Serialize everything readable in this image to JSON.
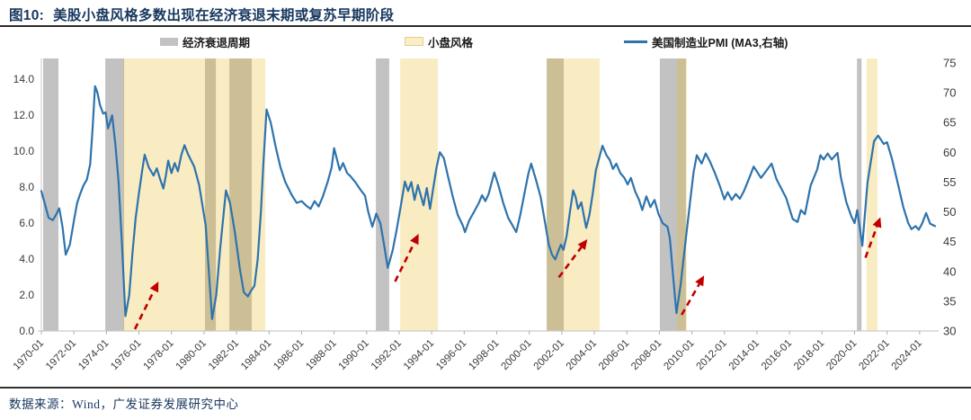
{
  "title": {
    "prefix": "图10:",
    "text": "美股小盘风格多数出现在经济衰退末期或复苏早期阶段"
  },
  "legend": [
    {
      "label": "经济衰退周期",
      "swatch": "gray-band"
    },
    {
      "label": "小盘风格",
      "swatch": "yellow-band"
    },
    {
      "label": "美国制造业PMI (MA3,右轴)",
      "swatch": "blue-line"
    }
  ],
  "source": "数据来源：Wind，广发证券发展研究中心",
  "colors": {
    "navy": "#17375e",
    "line_blue": "#2e73ac",
    "recession_gray": "#c2c2c2",
    "smallcap_yellow": "rgba(233,186,34,0.27)",
    "arrow_red": "#c00000",
    "axis_text": "#3a3a3a",
    "spine": "#c9c9c9"
  },
  "chart_data": {
    "type": "line",
    "title": "美股小盘风格多数出现在经济衰退末期或复苏早期阶段",
    "x_axis": {
      "range": [
        1970.0,
        2024.95
      ],
      "tick_years": [
        1970,
        1972,
        1974,
        1976,
        1978,
        1980,
        1982,
        1984,
        1986,
        1988,
        1990,
        1992,
        1994,
        1996,
        1998,
        2000,
        2002,
        2004,
        2006,
        2008,
        2010,
        2012,
        2014,
        2016,
        2018,
        2020,
        2022,
        2024
      ],
      "tick_labels": [
        "1970-01",
        "1972-01",
        "1974-01",
        "1976-01",
        "1978-01",
        "1980-01",
        "1982-01",
        "1984-01",
        "1986-01",
        "1988-01",
        "1990-01",
        "1992-01",
        "1994-01",
        "1996-01",
        "1998-01",
        "2000-01",
        "2002-01",
        "2004-01",
        "2006-01",
        "2008-01",
        "2010-01",
        "2012-01",
        "2014-01",
        "2016-01",
        "2018-01",
        "2020-01",
        "2022-01",
        "2024-01"
      ]
    },
    "left_axis": {
      "min": 0,
      "max": 14,
      "ticks": [
        0,
        2,
        4,
        6,
        8,
        10,
        12,
        14
      ],
      "tick_labels": [
        "0.0",
        "2.0",
        "4.0",
        "6.0",
        "8.0",
        "10.0",
        "12.0",
        "14.0"
      ]
    },
    "right_axis": {
      "min": 30,
      "max": 75,
      "ticks": [
        30,
        35,
        40,
        45,
        50,
        55,
        60,
        65,
        70,
        75
      ],
      "tick_labels": [
        "30",
        "35",
        "40",
        "45",
        "50",
        "55",
        "60",
        "65",
        "70",
        "75"
      ]
    },
    "recession_bands": [
      [
        1970.11,
        1971.05
      ],
      [
        1973.93,
        1975.09
      ],
      [
        1980.06,
        1980.73
      ],
      [
        1981.56,
        1982.94
      ],
      [
        1990.57,
        1991.39
      ],
      [
        2001.07,
        2002.12
      ],
      [
        2008.03,
        2009.63
      ],
      [
        2020.15,
        2020.43
      ]
    ],
    "smallcap_bands": [
      [
        1975.03,
        1983.77
      ],
      [
        1992.06,
        1994.38
      ],
      [
        2001.07,
        2004.33
      ],
      [
        2009.08,
        2009.69
      ],
      [
        2020.74,
        2021.41
      ]
    ],
    "arrows": [
      {
        "from": [
          1975.75,
          30.3
        ],
        "to": [
          1977.2,
          38.3
        ]
      },
      {
        "from": [
          1991.75,
          38.3
        ],
        "to": [
          1993.2,
          46.3
        ]
      },
      {
        "from": [
          2001.82,
          39.0
        ],
        "to": [
          2003.57,
          45.4
        ]
      },
      {
        "from": [
          2009.37,
          32.7
        ],
        "to": [
          2010.75,
          39.3
        ]
      },
      {
        "from": [
          2020.67,
          42.3
        ],
        "to": [
          2021.59,
          49.1
        ]
      }
    ],
    "series": [
      {
        "name": "美国制造业PMI (MA3,右轴)",
        "axis": "right",
        "color": "#2e73ac",
        "points": [
          [
            1970.0,
            53.5
          ],
          [
            1970.2,
            51.5
          ],
          [
            1970.45,
            49.0
          ],
          [
            1970.7,
            48.6
          ],
          [
            1970.9,
            49.5
          ],
          [
            1971.1,
            50.6
          ],
          [
            1971.3,
            47.5
          ],
          [
            1971.5,
            42.8
          ],
          [
            1971.75,
            44.5
          ],
          [
            1972.0,
            48.5
          ],
          [
            1972.2,
            51.5
          ],
          [
            1972.4,
            53.1
          ],
          [
            1972.6,
            54.5
          ],
          [
            1972.8,
            55.4
          ],
          [
            1973.0,
            58.0
          ],
          [
            1973.15,
            64.0
          ],
          [
            1973.3,
            71.1
          ],
          [
            1973.45,
            70.0
          ],
          [
            1973.6,
            68.0
          ],
          [
            1973.8,
            66.5
          ],
          [
            1973.95,
            66.7
          ],
          [
            1974.1,
            64.0
          ],
          [
            1974.35,
            66.2
          ],
          [
            1974.55,
            61.4
          ],
          [
            1974.75,
            55.0
          ],
          [
            1974.95,
            45.0
          ],
          [
            1975.17,
            32.5
          ],
          [
            1975.4,
            36.0
          ],
          [
            1975.6,
            43.0
          ],
          [
            1975.8,
            49.0
          ],
          [
            1976.0,
            53.1
          ],
          [
            1976.2,
            57.0
          ],
          [
            1976.35,
            59.6
          ],
          [
            1976.6,
            57.5
          ],
          [
            1976.9,
            56.1
          ],
          [
            1977.1,
            57.3
          ],
          [
            1977.3,
            55.5
          ],
          [
            1977.5,
            53.9
          ],
          [
            1977.65,
            56.0
          ],
          [
            1977.8,
            58.6
          ],
          [
            1978.0,
            56.5
          ],
          [
            1978.2,
            58.2
          ],
          [
            1978.4,
            56.8
          ],
          [
            1978.6,
            59.5
          ],
          [
            1978.8,
            61.2
          ],
          [
            1979.0,
            59.8
          ],
          [
            1979.4,
            57.6
          ],
          [
            1979.7,
            54.5
          ],
          [
            1980.1,
            47.8
          ],
          [
            1980.3,
            40.0
          ],
          [
            1980.5,
            32.0
          ],
          [
            1980.75,
            36.0
          ],
          [
            1981.0,
            44.0
          ],
          [
            1981.35,
            53.6
          ],
          [
            1981.6,
            51.5
          ],
          [
            1981.9,
            46.5
          ],
          [
            1982.2,
            40.5
          ],
          [
            1982.45,
            36.5
          ],
          [
            1982.7,
            35.8
          ],
          [
            1982.9,
            36.8
          ],
          [
            1983.1,
            37.6
          ],
          [
            1983.3,
            42.0
          ],
          [
            1983.5,
            50.0
          ],
          [
            1983.65,
            58.0
          ],
          [
            1983.85,
            67.2
          ],
          [
            1984.1,
            65.0
          ],
          [
            1984.4,
            61.0
          ],
          [
            1984.7,
            57.5
          ],
          [
            1985.0,
            55.0
          ],
          [
            1985.4,
            52.8
          ],
          [
            1985.7,
            51.5
          ],
          [
            1986.0,
            51.8
          ],
          [
            1986.3,
            51.0
          ],
          [
            1986.55,
            50.5
          ],
          [
            1986.8,
            51.8
          ],
          [
            1987.05,
            50.9
          ],
          [
            1987.3,
            52.5
          ],
          [
            1987.6,
            55.0
          ],
          [
            1987.85,
            57.5
          ],
          [
            1988.0,
            60.7
          ],
          [
            1988.35,
            57.0
          ],
          [
            1988.55,
            58.2
          ],
          [
            1988.8,
            56.5
          ],
          [
            1989.0,
            56.0
          ],
          [
            1989.3,
            55.0
          ],
          [
            1989.6,
            53.8
          ],
          [
            1989.9,
            52.7
          ],
          [
            1990.1,
            50.0
          ],
          [
            1990.35,
            47.5
          ],
          [
            1990.6,
            49.7
          ],
          [
            1990.85,
            48.0
          ],
          [
            1991.1,
            44.0
          ],
          [
            1991.3,
            40.6
          ],
          [
            1991.6,
            43.5
          ],
          [
            1991.85,
            47.0
          ],
          [
            1992.1,
            51.0
          ],
          [
            1992.35,
            55.1
          ],
          [
            1992.55,
            53.5
          ],
          [
            1992.75,
            55.0
          ],
          [
            1992.95,
            52.0
          ],
          [
            1993.15,
            54.5
          ],
          [
            1993.5,
            51.1
          ],
          [
            1993.7,
            54.0
          ],
          [
            1993.9,
            50.5
          ],
          [
            1994.1,
            54.0
          ],
          [
            1994.3,
            57.5
          ],
          [
            1994.5,
            60.0
          ],
          [
            1994.75,
            59.0
          ],
          [
            1995.0,
            56.0
          ],
          [
            1995.3,
            52.5
          ],
          [
            1995.6,
            49.5
          ],
          [
            1995.9,
            47.8
          ],
          [
            1996.05,
            46.6
          ],
          [
            1996.3,
            48.5
          ],
          [
            1996.6,
            50.0
          ],
          [
            1996.9,
            51.5
          ],
          [
            1997.1,
            52.8
          ],
          [
            1997.3,
            51.8
          ],
          [
            1997.5,
            53.0
          ],
          [
            1997.85,
            56.6
          ],
          [
            1998.1,
            54.5
          ],
          [
            1998.4,
            51.5
          ],
          [
            1998.7,
            49.0
          ],
          [
            1998.95,
            47.8
          ],
          [
            1999.2,
            46.6
          ],
          [
            1999.45,
            49.5
          ],
          [
            1999.7,
            53.0
          ],
          [
            1999.95,
            56.5
          ],
          [
            2000.12,
            58.1
          ],
          [
            2000.4,
            55.5
          ],
          [
            2000.7,
            52.5
          ],
          [
            2000.95,
            48.5
          ],
          [
            2001.2,
            44.5
          ],
          [
            2001.4,
            42.8
          ],
          [
            2001.6,
            42.0
          ],
          [
            2001.8,
            43.5
          ],
          [
            2001.95,
            44.5
          ],
          [
            2002.1,
            43.6
          ],
          [
            2002.3,
            46.0
          ],
          [
            2002.5,
            50.0
          ],
          [
            2002.7,
            53.6
          ],
          [
            2002.85,
            52.5
          ],
          [
            2003.0,
            50.5
          ],
          [
            2003.2,
            51.6
          ],
          [
            2003.5,
            47.3
          ],
          [
            2003.7,
            49.5
          ],
          [
            2003.9,
            53.0
          ],
          [
            2004.1,
            57.0
          ],
          [
            2004.5,
            61.1
          ],
          [
            2004.75,
            59.5
          ],
          [
            2004.95,
            58.7
          ],
          [
            2005.15,
            57.2
          ],
          [
            2005.35,
            58.1
          ],
          [
            2005.6,
            56.5
          ],
          [
            2005.85,
            55.7
          ],
          [
            2006.05,
            54.6
          ],
          [
            2006.25,
            55.7
          ],
          [
            2006.5,
            53.5
          ],
          [
            2006.75,
            52.0
          ],
          [
            2006.95,
            50.3
          ],
          [
            2007.2,
            52.6
          ],
          [
            2007.45,
            50.8
          ],
          [
            2007.7,
            52.0
          ],
          [
            2007.95,
            49.6
          ],
          [
            2008.2,
            48.1
          ],
          [
            2008.5,
            47.5
          ],
          [
            2008.65,
            45.5
          ],
          [
            2008.85,
            39.0
          ],
          [
            2009.05,
            33.0
          ],
          [
            2009.3,
            37.6
          ],
          [
            2009.6,
            44.8
          ],
          [
            2009.9,
            52.0
          ],
          [
            2010.1,
            56.6
          ],
          [
            2010.3,
            59.5
          ],
          [
            2010.6,
            58.1
          ],
          [
            2010.85,
            59.8
          ],
          [
            2011.1,
            58.5
          ],
          [
            2011.4,
            56.6
          ],
          [
            2011.7,
            54.5
          ],
          [
            2012.0,
            52.1
          ],
          [
            2012.2,
            53.3
          ],
          [
            2012.45,
            52.0
          ],
          [
            2012.7,
            53.0
          ],
          [
            2012.95,
            52.2
          ],
          [
            2013.2,
            53.5
          ],
          [
            2013.5,
            55.5
          ],
          [
            2013.8,
            57.6
          ],
          [
            2014.25,
            55.7
          ],
          [
            2014.55,
            56.8
          ],
          [
            2014.9,
            58.1
          ],
          [
            2015.2,
            55.5
          ],
          [
            2015.5,
            53.9
          ],
          [
            2015.8,
            52.3
          ],
          [
            2016.2,
            48.8
          ],
          [
            2016.5,
            48.3
          ],
          [
            2016.7,
            50.3
          ],
          [
            2016.95,
            49.6
          ],
          [
            2017.3,
            54.4
          ],
          [
            2017.7,
            57.1
          ],
          [
            2017.9,
            59.5
          ],
          [
            2018.1,
            58.8
          ],
          [
            2018.35,
            59.8
          ],
          [
            2018.6,
            58.8
          ],
          [
            2018.95,
            59.9
          ],
          [
            2019.15,
            55.9
          ],
          [
            2019.5,
            51.6
          ],
          [
            2019.8,
            49.3
          ],
          [
            2020.0,
            48.1
          ],
          [
            2020.17,
            50.3
          ],
          [
            2020.48,
            44.3
          ],
          [
            2020.8,
            54.9
          ],
          [
            2021.2,
            61.9
          ],
          [
            2021.45,
            62.8
          ],
          [
            2021.8,
            61.4
          ],
          [
            2022.0,
            61.7
          ],
          [
            2022.3,
            58.9
          ],
          [
            2022.65,
            54.9
          ],
          [
            2023.0,
            50.8
          ],
          [
            2023.3,
            48.1
          ],
          [
            2023.5,
            47.1
          ],
          [
            2023.75,
            47.6
          ],
          [
            2023.95,
            47.0
          ],
          [
            2024.15,
            48.0
          ],
          [
            2024.4,
            49.8
          ],
          [
            2024.65,
            48.0
          ],
          [
            2024.95,
            47.6
          ]
        ]
      }
    ]
  }
}
